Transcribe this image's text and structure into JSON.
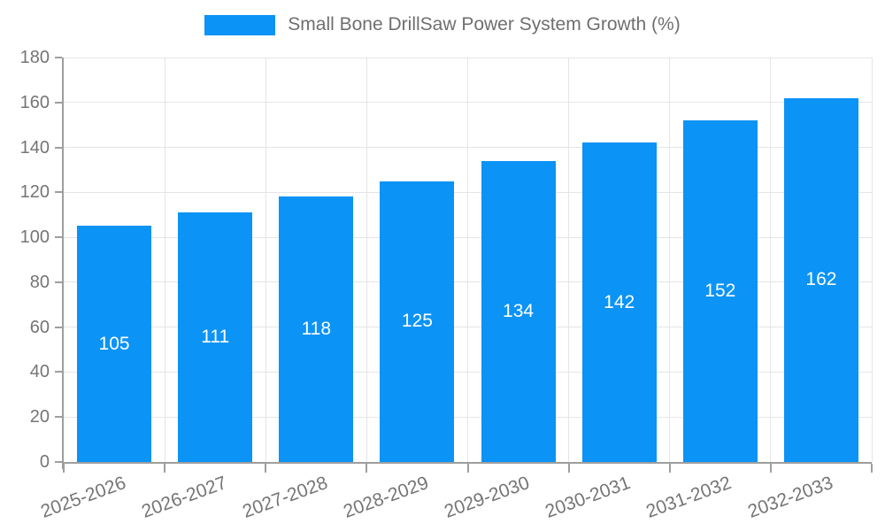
{
  "chart_data": {
    "type": "bar",
    "title": "Small Bone DrillSaw Power System Growth (%)",
    "categories": [
      "2025-2026",
      "2026-2027",
      "2027-2028",
      "2028-2029",
      "2029-2030",
      "2030-2031",
      "2031-2032",
      "2032-2033"
    ],
    "values": [
      105,
      111,
      118,
      125,
      134,
      142,
      152,
      162
    ],
    "xlabel": "",
    "ylabel": "",
    "ylim": [
      0,
      180
    ],
    "ytick_step": 20,
    "grid": true,
    "legend_position": "top",
    "x_tick_rotation_deg": -20,
    "colors": {
      "bar": "#0b93f6",
      "gridline": "#e5e5e5",
      "axis_line": "#9e9e9e",
      "tick_label": "#757575",
      "legend_text": "#6f6f6f",
      "value_label": "#ffffff",
      "background": "#ffffff"
    }
  }
}
